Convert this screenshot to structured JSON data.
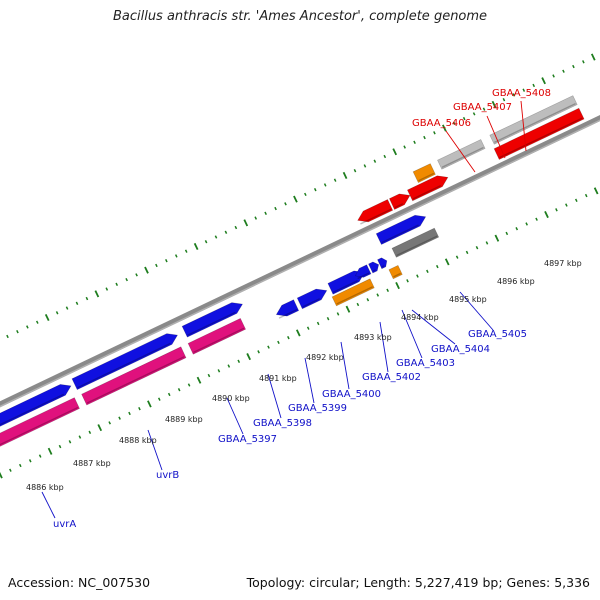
{
  "title": "Bacillus anthracis str. 'Ames Ancestor', complete genome",
  "footer": {
    "accession": "Accession: NC_007530",
    "topology": "Topology: circular; Length: 5,227,419 bp; Genes: 5,336"
  },
  "colors": {
    "background": "#ffffff",
    "backbone": "#8a8a8a",
    "forward_cds": "#1010e0",
    "reverse_cds": "#e0117d",
    "orange_feature": "#f08a00",
    "gray_feature": "#777777",
    "light_gray_feature": "#bdbdbd",
    "red_feature": "#ee0000",
    "tick": "#1e7d1e",
    "blue_label": "#1010c8",
    "red_label": "#dd0000"
  },
  "scale_labels": [
    {
      "text": "4886 kbp",
      "position_kbp": 4886
    },
    {
      "text": "4887 kbp",
      "position_kbp": 4887
    },
    {
      "text": "4888 kbp",
      "position_kbp": 4888
    },
    {
      "text": "4889 kbp",
      "position_kbp": 4889
    },
    {
      "text": "4890 kbp",
      "position_kbp": 4890
    },
    {
      "text": "4891 kbp",
      "position_kbp": 4891
    },
    {
      "text": "4892 kbp",
      "position_kbp": 4892
    },
    {
      "text": "4893 kbp",
      "position_kbp": 4893
    },
    {
      "text": "4894 kbp",
      "position_kbp": 4894
    },
    {
      "text": "4895 kbp",
      "position_kbp": 4895
    },
    {
      "text": "4896 kbp",
      "position_kbp": 4896
    },
    {
      "text": "4897 kbp",
      "position_kbp": 4897
    }
  ],
  "gene_labels": [
    {
      "text": "uvrA",
      "color": "blue"
    },
    {
      "text": "uvrB",
      "color": "blue"
    },
    {
      "text": "GBAA_5397",
      "color": "blue"
    },
    {
      "text": "GBAA_5398",
      "color": "blue"
    },
    {
      "text": "GBAA_5399",
      "color": "blue"
    },
    {
      "text": "GBAA_5400",
      "color": "blue"
    },
    {
      "text": "GBAA_5402",
      "color": "blue"
    },
    {
      "text": "GBAA_5403",
      "color": "blue"
    },
    {
      "text": "GBAA_5404",
      "color": "blue"
    },
    {
      "text": "GBAA_5405",
      "color": "blue"
    },
    {
      "text": "GBAA_5406",
      "color": "red"
    },
    {
      "text": "GBAA_5407",
      "color": "red"
    },
    {
      "text": "GBAA_5408",
      "color": "red"
    }
  ]
}
